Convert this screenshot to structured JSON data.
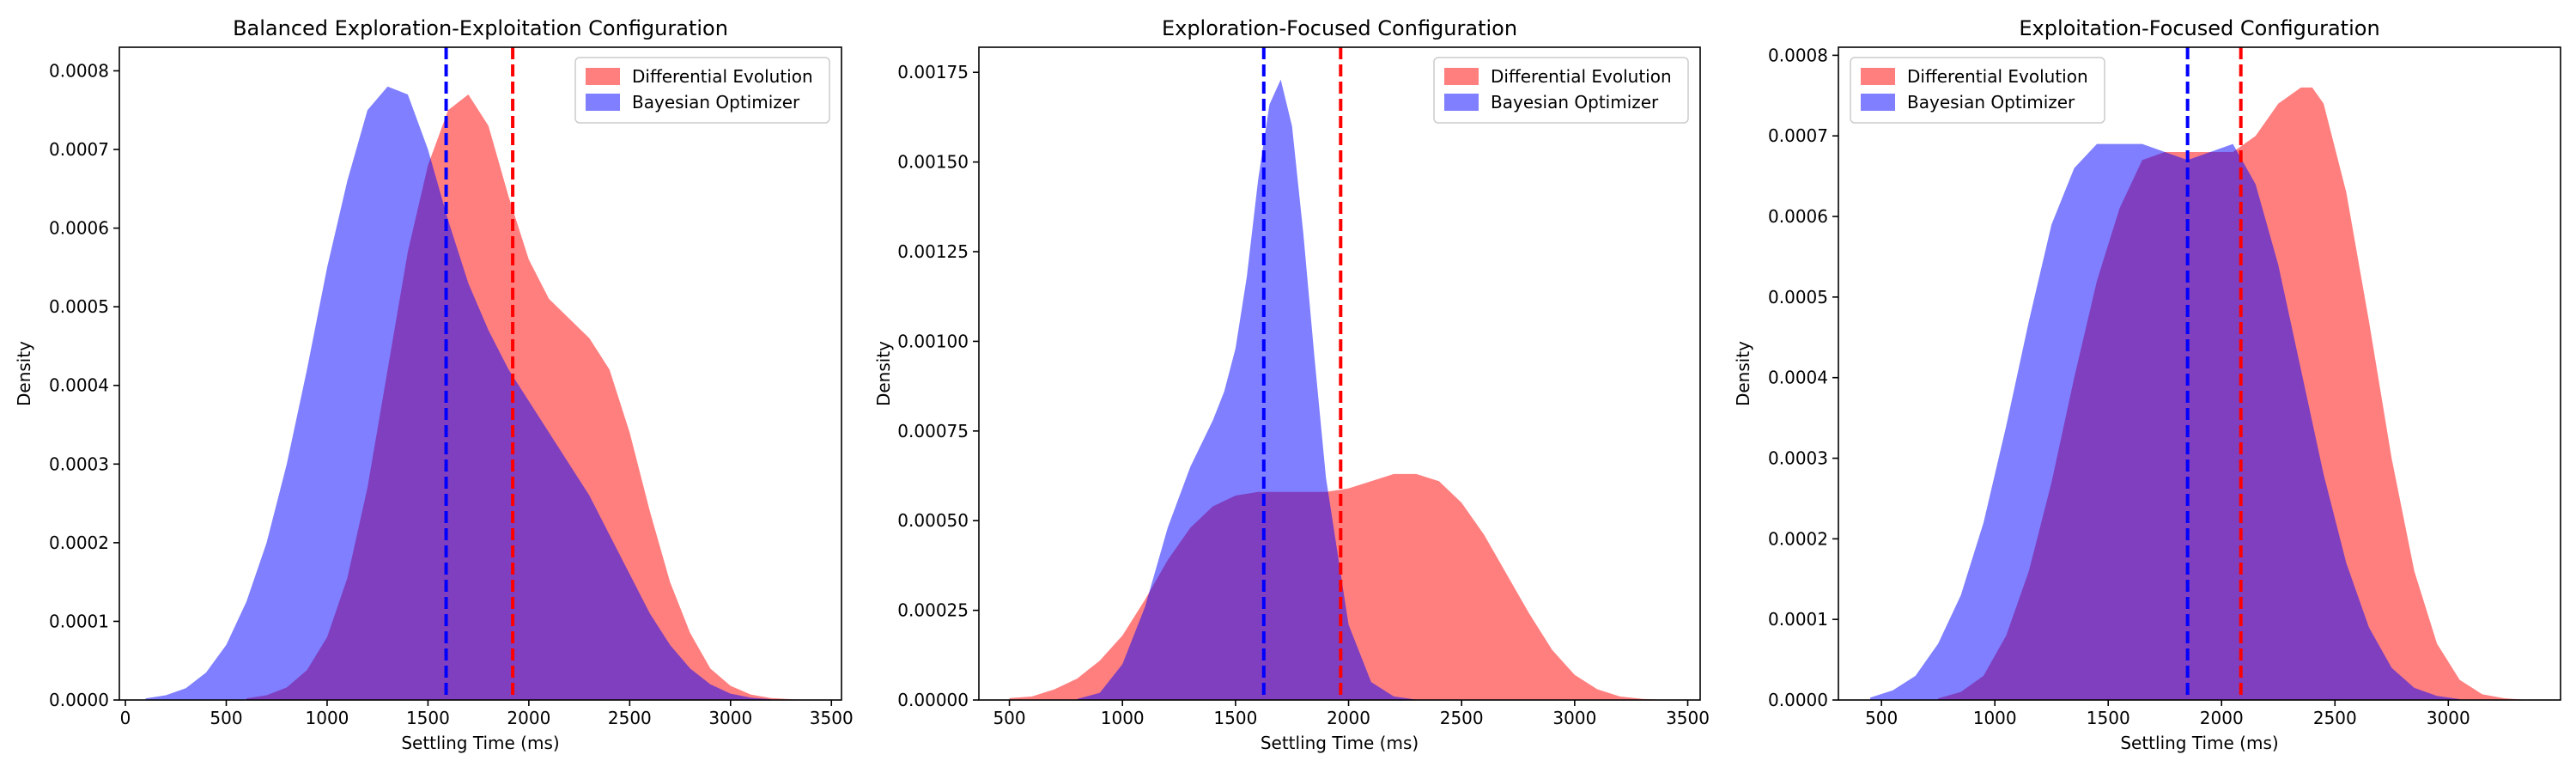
{
  "chart_data": [
    {
      "type": "area",
      "title": "Balanced Exploration-Exploitation Configuration",
      "xlabel": "Settling Time (ms)",
      "ylabel": "Density",
      "xlim": [
        -30,
        3550
      ],
      "ylim": [
        0,
        0.00083
      ],
      "xticks": [
        0,
        500,
        1000,
        1500,
        2000,
        2500,
        3000,
        3500
      ],
      "yticks": [
        0,
        0.0001,
        0.0002,
        0.0003,
        0.0004,
        0.0005,
        0.0006,
        0.0007,
        0.0008
      ],
      "ytick_decimals": 4,
      "legend_position": "upper right",
      "series": [
        {
          "name": "Differential Evolution",
          "color": "#ff0000",
          "alpha": 0.5,
          "mean_line": 1920,
          "x": [
            600,
            700,
            800,
            900,
            1000,
            1100,
            1200,
            1300,
            1400,
            1500,
            1600,
            1700,
            1800,
            1900,
            2000,
            2100,
            2200,
            2300,
            2400,
            2500,
            2600,
            2700,
            2800,
            2900,
            3000,
            3100,
            3200,
            3300,
            3400
          ],
          "y": [
            2e-06,
            6e-06,
            1.6e-05,
            3.8e-05,
            8e-05,
            0.000155,
            0.00027,
            0.00042,
            0.00057,
            0.00068,
            0.00075,
            0.00077,
            0.00073,
            0.00064,
            0.00056,
            0.00051,
            0.000485,
            0.00046,
            0.00042,
            0.00034,
            0.00024,
            0.00015,
            8.5e-05,
            4e-05,
            1.8e-05,
            7e-06,
            2.5e-06,
            1e-06,
            3e-07
          ]
        },
        {
          "name": "Bayesian Optimizer",
          "color": "#0000ff",
          "alpha": 0.5,
          "mean_line": 1590,
          "x": [
            100,
            200,
            300,
            400,
            500,
            600,
            700,
            800,
            900,
            1000,
            1100,
            1200,
            1300,
            1400,
            1500,
            1600,
            1700,
            1800,
            1900,
            2000,
            2100,
            2200,
            2300,
            2400,
            2500,
            2600,
            2700,
            2800,
            2900,
            3000,
            3100,
            3200
          ],
          "y": [
            2e-06,
            6e-06,
            1.5e-05,
            3.5e-05,
            7e-05,
            0.000125,
            0.0002,
            0.0003,
            0.00042,
            0.00055,
            0.00066,
            0.00075,
            0.00078,
            0.00077,
            0.0007,
            0.00061,
            0.00053,
            0.00047,
            0.00042,
            0.00038,
            0.00034,
            0.0003,
            0.00026,
            0.00021,
            0.00016,
            0.00011,
            7e-05,
            4e-05,
            2e-05,
            8e-06,
            3e-06,
            1e-06
          ]
        }
      ]
    },
    {
      "type": "area",
      "title": "Exploration-Focused Configuration",
      "xlabel": "Settling Time (ms)",
      "ylabel": "Density",
      "xlim": [
        365,
        3555
      ],
      "ylim": [
        0,
        0.00182
      ],
      "xticks": [
        500,
        1000,
        1500,
        2000,
        2500,
        3000,
        3500
      ],
      "yticks": [
        0,
        0.00025,
        0.0005,
        0.00075,
        0.001,
        0.00125,
        0.0015,
        0.00175
      ],
      "ytick_decimals": 5,
      "legend_position": "upper right",
      "series": [
        {
          "name": "Differential Evolution",
          "color": "#ff0000",
          "alpha": 0.5,
          "mean_line": 1965,
          "x": [
            500,
            600,
            700,
            800,
            900,
            1000,
            1100,
            1200,
            1300,
            1400,
            1500,
            1600,
            1700,
            1800,
            1900,
            2000,
            2100,
            2200,
            2300,
            2400,
            2500,
            2600,
            2700,
            2800,
            2900,
            3000,
            3100,
            3200,
            3300,
            3400
          ],
          "y": [
            5e-06,
            1e-05,
            3e-05,
            6e-05,
            0.00011,
            0.00018,
            0.00028,
            0.00039,
            0.00048,
            0.00054,
            0.00057,
            0.00058,
            0.00058,
            0.00058,
            0.00058,
            0.00059,
            0.00061,
            0.00063,
            0.00063,
            0.00061,
            0.00055,
            0.00046,
            0.00035,
            0.00024,
            0.00014,
            7e-05,
            3e-05,
            1e-05,
            3e-06,
            5e-07
          ]
        },
        {
          "name": "Bayesian Optimizer",
          "color": "#0000ff",
          "alpha": 0.5,
          "mean_line": 1625,
          "x": [
            800,
            900,
            1000,
            1100,
            1200,
            1300,
            1400,
            1450,
            1500,
            1550,
            1600,
            1650,
            1700,
            1750,
            1800,
            1850,
            1900,
            2000,
            2100,
            2200,
            2300
          ],
          "y": [
            3e-06,
            2e-05,
            0.0001,
            0.00026,
            0.00048,
            0.00065,
            0.00078,
            0.00086,
            0.00098,
            0.00118,
            0.00145,
            0.00166,
            0.00173,
            0.0016,
            0.0013,
            0.00095,
            0.00062,
            0.00021,
            5e-05,
            1e-05,
            1e-06
          ]
        }
      ]
    },
    {
      "type": "area",
      "title": "Exploitation-Focused Configuration",
      "xlabel": "Settling Time (ms)",
      "ylabel": "Density",
      "xlim": [
        310,
        3495
      ],
      "ylim": [
        0,
        0.00081
      ],
      "xticks": [
        500,
        1000,
        1500,
        2000,
        2500,
        3000
      ],
      "yticks": [
        0,
        0.0001,
        0.0002,
        0.0003,
        0.0004,
        0.0005,
        0.0006,
        0.0007,
        0.0008
      ],
      "ytick_decimals": 4,
      "legend_position": "upper left",
      "series": [
        {
          "name": "Differential Evolution",
          "color": "#ff0000",
          "alpha": 0.5,
          "mean_line": 2085,
          "x": [
            750,
            850,
            950,
            1050,
            1150,
            1250,
            1350,
            1450,
            1550,
            1650,
            1750,
            1850,
            1950,
            2050,
            2150,
            2250,
            2350,
            2400,
            2450,
            2550,
            2650,
            2750,
            2850,
            2950,
            3050,
            3150,
            3250,
            3330
          ],
          "y": [
            2e-06,
            1e-05,
            3e-05,
            8e-05,
            0.00016,
            0.00027,
            0.0004,
            0.00052,
            0.00061,
            0.00067,
            0.00068,
            0.00068,
            0.00068,
            0.00068,
            0.0007,
            0.00074,
            0.00076,
            0.00076,
            0.00074,
            0.00063,
            0.00047,
            0.0003,
            0.00016,
            7e-05,
            2.5e-05,
            7e-06,
            2e-06,
            5e-07
          ]
        },
        {
          "name": "Bayesian Optimizer",
          "color": "#0000ff",
          "alpha": 0.5,
          "mean_line": 1850,
          "x": [
            450,
            550,
            650,
            750,
            850,
            950,
            1050,
            1150,
            1250,
            1350,
            1450,
            1550,
            1650,
            1750,
            1850,
            1950,
            2050,
            2150,
            2250,
            2350,
            2450,
            2550,
            2650,
            2750,
            2850,
            2950,
            3050
          ],
          "y": [
            3e-06,
            1.2e-05,
            3e-05,
            7e-05,
            0.00013,
            0.00022,
            0.00034,
            0.00047,
            0.00059,
            0.00066,
            0.00069,
            0.00069,
            0.00069,
            0.00068,
            0.00067,
            0.00068,
            0.00069,
            0.00064,
            0.00054,
            0.00041,
            0.00028,
            0.00017,
            9e-05,
            4e-05,
            1.5e-05,
            5e-06,
            1e-06
          ]
        }
      ]
    }
  ]
}
